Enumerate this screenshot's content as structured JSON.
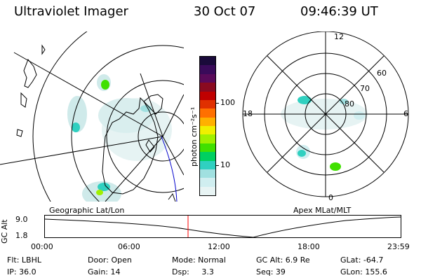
{
  "header": {
    "instrument": "Ultraviolet Imager",
    "date": "30 Oct 07",
    "time": "09:46:39 UT"
  },
  "left_panel": {
    "label": "Geographic Lat/Lon"
  },
  "right_panel": {
    "label": "Apex MLat/MLT",
    "mlt_labels": [
      "12",
      "18",
      "6",
      "0"
    ],
    "lat_labels": [
      "60",
      "70",
      "80"
    ]
  },
  "colorbar": {
    "unit_label": "photon cm⁻²s⁻¹",
    "ticks": [
      "100",
      "10"
    ],
    "colors": [
      "#1a0a3a",
      "#3a0a5a",
      "#5a0a5a",
      "#8a0a20",
      "#c00000",
      "#e03000",
      "#ff7000",
      "#ffb000",
      "#f0f000",
      "#a0f000",
      "#40e000",
      "#00d060",
      "#30d0c0",
      "#a0e0e0",
      "#d0eef0",
      "#e8f4f4"
    ]
  },
  "altitude_plot": {
    "ylabel": "GC Alt",
    "y_ticks": [
      "9.0",
      "1.8"
    ],
    "x_ticks": [
      "00:00",
      "06:00",
      "12:00",
      "18:00",
      "23:59"
    ],
    "marker_color": "#ff0000"
  },
  "footer": {
    "row1": {
      "filter": "Flt: LBHL",
      "door": "Door: Open",
      "mode": "Mode: Normal",
      "gc_alt": "GC Alt: 6.9 Re",
      "glat": "GLat: -64.7"
    },
    "row2": {
      "ip": "IP: 36.0",
      "gain": "Gain: 14",
      "dsp": "Dsp:     3.3",
      "seq": "Seq: 39",
      "glon": "GLon: 155.6"
    }
  }
}
